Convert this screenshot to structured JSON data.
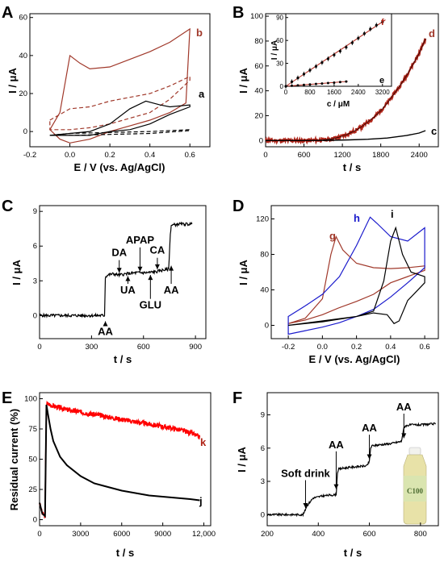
{
  "colors": {
    "black": "#000000",
    "red": "#b02418",
    "red_bright": "#ff0000",
    "brown": "#a0382a",
    "blue": "#1a1acc",
    "bottle_cap": "#f2f2ee",
    "bottle_liquid": "#e8e2a8",
    "bottle_label": "#d8e6b0"
  },
  "chart_data": [
    {
      "panel": "A",
      "type": "line",
      "xlabel": "E / V (vs. Ag/AgCl)",
      "ylabel": "I / μA",
      "xlim": [
        -0.2,
        0.7
      ],
      "ylim": [
        -8,
        62
      ],
      "xticks": [
        "-0.2",
        "0.0",
        "0.2",
        "0.4",
        "0.6"
      ],
      "yticks": [
        "0",
        "20",
        "40",
        "60"
      ],
      "curve_labels": [
        "b",
        "a"
      ],
      "series": [
        {
          "name": "b",
          "style": "solid",
          "color": "#a0382a",
          "cv": [
            [
              -0.1,
              1
            ],
            [
              -0.05,
              10
            ],
            [
              0.0,
              40
            ],
            [
              0.05,
              36
            ],
            [
              0.1,
              33
            ],
            [
              0.2,
              34
            ],
            [
              0.3,
              38
            ],
            [
              0.4,
              42
            ],
            [
              0.5,
              47
            ],
            [
              0.6,
              54
            ],
            [
              0.58,
              15
            ],
            [
              0.5,
              10
            ],
            [
              0.4,
              6
            ],
            [
              0.3,
              3
            ],
            [
              0.2,
              0
            ],
            [
              0.1,
              -4
            ],
            [
              0.0,
              -6
            ],
            [
              -0.05,
              -4
            ],
            [
              -0.1,
              1
            ]
          ]
        },
        {
          "name": "b-dashed",
          "style": "dashed",
          "color": "#a0382a",
          "cv": [
            [
              -0.1,
              6
            ],
            [
              0.0,
              12
            ],
            [
              0.1,
              13
            ],
            [
              0.2,
              16
            ],
            [
              0.3,
              18
            ],
            [
              0.4,
              20
            ],
            [
              0.5,
              24
            ],
            [
              0.6,
              29
            ],
            [
              0.6,
              27
            ],
            [
              0.5,
              17
            ],
            [
              0.4,
              10
            ],
            [
              0.3,
              7
            ],
            [
              0.2,
              4
            ],
            [
              0.1,
              2
            ],
            [
              0.0,
              1
            ],
            [
              -0.1,
              1
            ]
          ]
        },
        {
          "name": "a",
          "style": "solid",
          "color": "#000000",
          "cv": [
            [
              -0.1,
              -2
            ],
            [
              0.0,
              -1
            ],
            [
              0.1,
              0
            ],
            [
              0.2,
              4
            ],
            [
              0.3,
              12
            ],
            [
              0.38,
              16
            ],
            [
              0.45,
              14
            ],
            [
              0.5,
              13
            ],
            [
              0.6,
              14
            ],
            [
              0.6,
              13
            ],
            [
              0.5,
              9
            ],
            [
              0.4,
              4
            ],
            [
              0.3,
              1
            ],
            [
              0.2,
              0
            ],
            [
              0.1,
              -2
            ],
            [
              0.0,
              -2
            ],
            [
              -0.1,
              -2
            ]
          ]
        },
        {
          "name": "a-dashed",
          "style": "dashed",
          "color": "#000000",
          "cv": [
            [
              -0.1,
              -2
            ],
            [
              0.0,
              -1
            ],
            [
              0.2,
              -0.5
            ],
            [
              0.4,
              0
            ],
            [
              0.5,
              0.5
            ],
            [
              0.6,
              1
            ],
            [
              0.6,
              0.5
            ],
            [
              0.4,
              -1
            ],
            [
              0.2,
              -1.5
            ],
            [
              0.0,
              -2
            ],
            [
              -0.1,
              -2
            ]
          ]
        }
      ]
    },
    {
      "panel": "B",
      "type": "line",
      "xlabel": "t / s",
      "ylabel": "I / μA",
      "xlim": [
        0,
        2700
      ],
      "ylim": [
        -5,
        102
      ],
      "xticks": [
        "0",
        "600",
        "1200",
        "1800",
        "2400"
      ],
      "yticks": [
        "0",
        "20",
        "40",
        "60",
        "80",
        "100"
      ],
      "curve_labels": [
        "d",
        "c"
      ],
      "series": [
        {
          "name": "d",
          "color": "#b02418",
          "x": [
            0,
            700,
            900,
            1000,
            1100,
            1200,
            1300,
            1400,
            1500,
            1600,
            1700,
            1800,
            1900,
            2000,
            2100,
            2200,
            2300,
            2400,
            2450,
            2500
          ],
          "y": [
            0,
            0,
            0.5,
            1,
            2,
            3.5,
            5.5,
            8,
            11,
            15,
            19,
            24,
            30,
            37,
            44,
            52,
            61,
            70,
            76,
            82
          ]
        },
        {
          "name": "c",
          "color": "#000000",
          "x": [
            0,
            700,
            1000,
            1300,
            1600,
            1900,
            2200,
            2400,
            2500
          ],
          "y": [
            0,
            0,
            0.2,
            0.5,
            1,
            2,
            4,
            6,
            8
          ]
        }
      ],
      "inset": {
        "xlabel": "c / μM",
        "ylabel": "I / μA",
        "xlim": [
          0,
          3500
        ],
        "ylim": [
          0,
          95
        ],
        "xticks": [
          "0",
          "800",
          "1600",
          "2400",
          "3200"
        ],
        "yticks": [
          "0",
          "30",
          "60",
          "90"
        ],
        "curve_labels": [
          "f",
          "e"
        ],
        "series": [
          {
            "name": "f",
            "x": [
              0,
              200,
              400,
              600,
              800,
              1000,
              1200,
              1400,
              1600,
              1800,
              2000,
              2200,
              2400,
              2600,
              2800,
              3000,
              3200
            ],
            "y": [
              0,
              6,
              11,
              16,
              21,
              26,
              31,
              36,
              41,
              46,
              51,
              57,
              63,
              69,
              75,
              80,
              84
            ]
          },
          {
            "name": "e",
            "x": [
              0,
              200,
              400,
              600,
              800,
              1000,
              1200,
              1400,
              1600,
              1800,
              2000
            ],
            "y": [
              0,
              0.6,
              1.2,
              1.8,
              2.4,
              3,
              3.6,
              4.2,
              4.8,
              5.5,
              6.2
            ]
          }
        ]
      }
    },
    {
      "panel": "C",
      "type": "line",
      "xlabel": "t / s",
      "ylabel": "I / μA",
      "xlim": [
        0,
        960
      ],
      "ylim": [
        -2,
        9.5
      ],
      "xticks": [
        "0",
        "300",
        "600",
        "900"
      ],
      "yticks": [
        "0",
        "3",
        "6",
        "9"
      ],
      "series": [
        {
          "name": "amperometric",
          "color": "#000000",
          "x": [
            0,
            375,
            380,
            385,
            395,
            420,
            460,
            500,
            560,
            620,
            680,
            700,
            745,
            755,
            760,
            800,
            880
          ],
          "y": [
            0,
            0,
            3.3,
            3.4,
            3.5,
            3.6,
            3.5,
            3.6,
            3.7,
            3.7,
            3.8,
            3.9,
            4.0,
            7.0,
            7.8,
            7.9,
            7.9
          ]
        }
      ],
      "annotations": [
        {
          "text": "AA",
          "x": 380,
          "y_tip": -0.5,
          "y_text": -1.7
        },
        {
          "text": "DA",
          "x": 460,
          "y_tip": 3.7,
          "y_text": 5.0
        },
        {
          "text": "UA",
          "x": 510,
          "y_tip": 3.4,
          "y_text": 1.9
        },
        {
          "text": "APAP",
          "x": 580,
          "y_tip": 3.8,
          "y_text": 6.1
        },
        {
          "text": "GLU",
          "x": 640,
          "y_tip": 3.5,
          "y_text": 0.6
        },
        {
          "text": "CA",
          "x": 680,
          "y_tip": 4.0,
          "y_text": 5.2
        },
        {
          "text": "AA",
          "x": 760,
          "y_tip": 4.3,
          "y_text": 1.9
        }
      ]
    },
    {
      "panel": "D",
      "type": "line",
      "xlabel": "E / V (vs. Ag/AgCl)",
      "ylabel": "I / μA",
      "xlim": [
        -0.3,
        0.68
      ],
      "ylim": [
        -15,
        135
      ],
      "xticks": [
        "-0.2",
        "0.0",
        "0.2",
        "0.4",
        "0.6"
      ],
      "yticks": [
        "0",
        "40",
        "80",
        "120"
      ],
      "curve_labels": [
        "g",
        "h",
        "i"
      ],
      "series": [
        {
          "name": "g",
          "color": "#a0382a",
          "cv": [
            [
              -0.2,
              2
            ],
            [
              -0.1,
              8
            ],
            [
              0.0,
              30
            ],
            [
              0.05,
              80
            ],
            [
              0.08,
              100
            ],
            [
              0.12,
              85
            ],
            [
              0.2,
              70
            ],
            [
              0.3,
              65
            ],
            [
              0.4,
              64
            ],
            [
              0.5,
              65
            ],
            [
              0.6,
              67
            ],
            [
              0.6,
              62
            ],
            [
              0.5,
              55
            ],
            [
              0.4,
              48
            ],
            [
              0.3,
              35
            ],
            [
              0.2,
              27
            ],
            [
              0.1,
              20
            ],
            [
              0.0,
              12
            ],
            [
              -0.1,
              6
            ],
            [
              -0.2,
              2
            ]
          ]
        },
        {
          "name": "h",
          "color": "#1a1acc",
          "cv": [
            [
              -0.2,
              10
            ],
            [
              -0.1,
              22
            ],
            [
              0.0,
              35
            ],
            [
              0.1,
              55
            ],
            [
              0.2,
              90
            ],
            [
              0.28,
              122
            ],
            [
              0.32,
              115
            ],
            [
              0.4,
              100
            ],
            [
              0.5,
              95
            ],
            [
              0.6,
              110
            ],
            [
              0.6,
              65
            ],
            [
              0.5,
              48
            ],
            [
              0.4,
              32
            ],
            [
              0.3,
              18
            ],
            [
              0.2,
              10
            ],
            [
              0.1,
              3
            ],
            [
              0.0,
              -2
            ],
            [
              -0.1,
              -6
            ],
            [
              -0.2,
              -10
            ]
          ]
        },
        {
          "name": "i",
          "color": "#000000",
          "cv": [
            [
              -0.2,
              0
            ],
            [
              0.0,
              4
            ],
            [
              0.2,
              10
            ],
            [
              0.3,
              16
            ],
            [
              0.36,
              50
            ],
            [
              0.4,
              95
            ],
            [
              0.43,
              110
            ],
            [
              0.47,
              80
            ],
            [
              0.52,
              60
            ],
            [
              0.6,
              55
            ],
            [
              0.6,
              48
            ],
            [
              0.5,
              28
            ],
            [
              0.45,
              5
            ],
            [
              0.42,
              2
            ],
            [
              0.38,
              12
            ],
            [
              0.3,
              14
            ],
            [
              0.2,
              10
            ],
            [
              0.0,
              5
            ],
            [
              -0.2,
              0
            ]
          ]
        }
      ]
    },
    {
      "panel": "E",
      "type": "line",
      "xlabel": "t / s",
      "ylabel": "Residual current (%)",
      "xlim": [
        0,
        12500
      ],
      "ylim": [
        -5,
        105
      ],
      "xticks": [
        "0",
        "3000",
        "6000",
        "9000",
        "12,000"
      ],
      "yticks": [
        "0",
        "25",
        "50",
        "75",
        "100"
      ],
      "curve_labels": [
        "k",
        "j"
      ],
      "series": [
        {
          "name": "k",
          "color": "#ff0000",
          "x": [
            0,
            200,
            400,
            500,
            600,
            1000,
            2000,
            3000,
            4000,
            5000,
            6000,
            7000,
            8000,
            9000,
            10000,
            11000,
            11700
          ],
          "y": [
            14,
            5,
            3,
            95,
            96,
            94,
            91,
            89,
            87,
            85,
            83,
            81,
            79,
            77,
            75,
            72,
            68
          ]
        },
        {
          "name": "j",
          "color": "#000000",
          "x": [
            0,
            200,
            400,
            500,
            600,
            800,
            1000,
            1500,
            2000,
            3000,
            4000,
            5000,
            6000,
            7000,
            8000,
            9000,
            10000,
            11000,
            11700
          ],
          "y": [
            14,
            5,
            3,
            95,
            88,
            75,
            65,
            52,
            45,
            36,
            30,
            27,
            24,
            22,
            20,
            19,
            18,
            17,
            16
          ]
        }
      ]
    },
    {
      "panel": "F",
      "type": "line",
      "xlabel": "t / s",
      "ylabel": "I / μA",
      "xlim": [
        200,
        870
      ],
      "ylim": [
        -1,
        11
      ],
      "xticks": [
        "200",
        "400",
        "600",
        "800"
      ],
      "yticks": [
        "0",
        "3",
        "6",
        "9"
      ],
      "series": [
        {
          "name": "amperometric",
          "color": "#000000",
          "x": [
            200,
            340,
            345,
            355,
            380,
            420,
            470,
            475,
            480,
            500,
            540,
            590,
            600,
            605,
            610,
            640,
            680,
            725,
            735,
            740,
            760,
            800,
            860
          ],
          "y": [
            0,
            0,
            0.2,
            0.8,
            1.5,
            1.7,
            1.8,
            3.8,
            4.1,
            4.2,
            4.3,
            4.4,
            4.8,
            6.0,
            6.2,
            6.3,
            6.4,
            6.6,
            7.8,
            8.0,
            8.1,
            8.1,
            8.2
          ]
        }
      ],
      "annotations": [
        {
          "text": "Soft drink",
          "x": 350,
          "y_tip": 0.6,
          "y_text": 3.4
        },
        {
          "text": "AA",
          "x": 470,
          "y_tip": 2.3,
          "y_text": 6.0
        },
        {
          "text": "AA",
          "x": 600,
          "y_tip": 5.0,
          "y_text": 7.5
        },
        {
          "text": "AA",
          "x": 735,
          "y_tip": 6.9,
          "y_text": 9.4
        }
      ],
      "bottle_text": "C100"
    }
  ]
}
